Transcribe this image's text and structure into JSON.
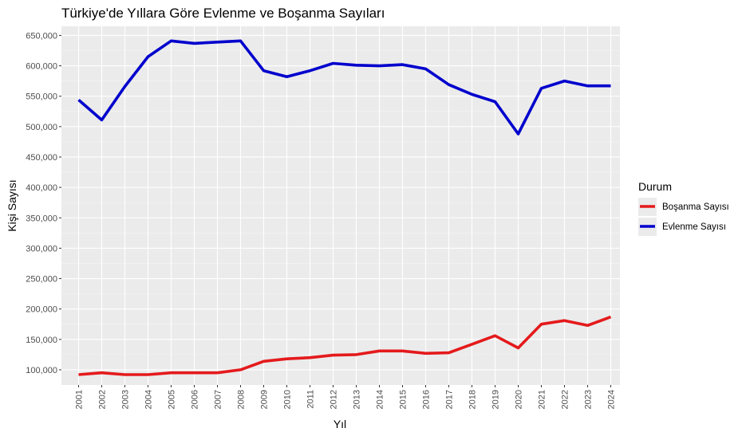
{
  "chart_data": {
    "type": "line",
    "title": "Türkiye'de Yıllara Göre Evlenme ve Boşanma Sayıları",
    "xlabel": "Yıl",
    "ylabel": "Kişi Sayısı",
    "x": [
      "2001",
      "2002",
      "2003",
      "2004",
      "2005",
      "2006",
      "2007",
      "2008",
      "2009",
      "2010",
      "2011",
      "2012",
      "2013",
      "2014",
      "2015",
      "2016",
      "2017",
      "2018",
      "2019",
      "2020",
      "2021",
      "2022",
      "2023",
      "2024"
    ],
    "series": [
      {
        "name": "Boşanma Sayısı",
        "color": "#e41a1c",
        "values": [
          92000,
          95000,
          92000,
          92000,
          95000,
          95000,
          95000,
          100000,
          114000,
          118000,
          120000,
          124000,
          125000,
          131000,
          131000,
          127000,
          128000,
          142000,
          156000,
          136000,
          175000,
          181000,
          173000,
          187000
        ]
      },
      {
        "name": "Evlenme Sayısı",
        "color": "#0000cd",
        "values": [
          544000,
          511000,
          566000,
          615000,
          641000,
          637000,
          639000,
          641000,
          592000,
          582000,
          592000,
          604000,
          601000,
          600000,
          602000,
          595000,
          569000,
          553000,
          541000,
          488000,
          563000,
          575000,
          567000,
          567000
        ]
      }
    ],
    "yticks": [
      100000,
      150000,
      200000,
      250000,
      300000,
      350000,
      400000,
      450000,
      500000,
      550000,
      600000,
      650000
    ],
    "ytick_labels": [
      "100,000",
      "150,000",
      "200,000",
      "250,000",
      "300,000",
      "350,000",
      "400,000",
      "450,000",
      "500,000",
      "550,000",
      "600,000",
      "650,000"
    ],
    "ylim": [
      75000,
      665000
    ],
    "grid": true,
    "legend": {
      "title": "Durum",
      "placement": "right",
      "entries": [
        "Boşanma Sayısı",
        "Evlenme Sayısı"
      ]
    }
  }
}
